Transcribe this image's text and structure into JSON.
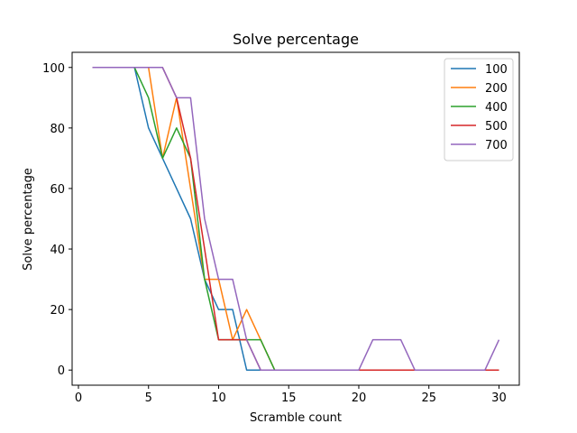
{
  "chart_data": {
    "type": "line",
    "title": "Solve percentage",
    "xlabel": "Scramble count",
    "ylabel": "Solve percentage",
    "xlim": [
      -0.45,
      31.45
    ],
    "ylim": [
      -5,
      105
    ],
    "xticks": [
      0,
      5,
      10,
      15,
      20,
      25,
      30
    ],
    "yticks": [
      0,
      20,
      40,
      60,
      80,
      100
    ],
    "grid": false,
    "legend_placement": "top-right",
    "x": [
      1,
      2,
      3,
      4,
      5,
      6,
      7,
      8,
      9,
      10,
      11,
      12,
      13,
      14,
      15,
      16,
      17,
      18,
      19,
      20,
      21,
      22,
      23,
      24,
      25,
      26,
      27,
      28,
      29,
      30
    ],
    "series": [
      {
        "name": "100",
        "color": "#1f77b4",
        "values": [
          100,
          100,
          100,
          100,
          80,
          70,
          60,
          50,
          30,
          20,
          20,
          0,
          0,
          0,
          0,
          0,
          0,
          0,
          0,
          0,
          0,
          0,
          0,
          0,
          0,
          0,
          0,
          0,
          0,
          0
        ]
      },
      {
        "name": "200",
        "color": "#ff7f0e",
        "values": [
          100,
          100,
          100,
          100,
          100,
          70,
          90,
          60,
          30,
          30,
          10,
          20,
          10,
          0,
          0,
          0,
          0,
          0,
          0,
          0,
          0,
          0,
          0,
          0,
          0,
          0,
          0,
          0,
          0,
          0
        ]
      },
      {
        "name": "400",
        "color": "#2ca02c",
        "values": [
          100,
          100,
          100,
          100,
          90,
          70,
          80,
          70,
          30,
          10,
          10,
          10,
          10,
          0,
          0,
          0,
          0,
          0,
          0,
          0,
          0,
          0,
          0,
          0,
          0,
          0,
          0,
          0,
          0,
          0
        ]
      },
      {
        "name": "500",
        "color": "#d62728",
        "values": [
          100,
          100,
          100,
          100,
          100,
          100,
          90,
          70,
          40,
          10,
          10,
          10,
          0,
          0,
          0,
          0,
          0,
          0,
          0,
          0,
          0,
          0,
          0,
          0,
          0,
          0,
          0,
          0,
          0,
          0
        ]
      },
      {
        "name": "700",
        "color": "#9467bd",
        "values": [
          100,
          100,
          100,
          100,
          100,
          100,
          90,
          90,
          50,
          30,
          30,
          10,
          0,
          0,
          0,
          0,
          0,
          0,
          0,
          0,
          10,
          10,
          10,
          0,
          0,
          0,
          0,
          0,
          0,
          10
        ]
      }
    ]
  }
}
